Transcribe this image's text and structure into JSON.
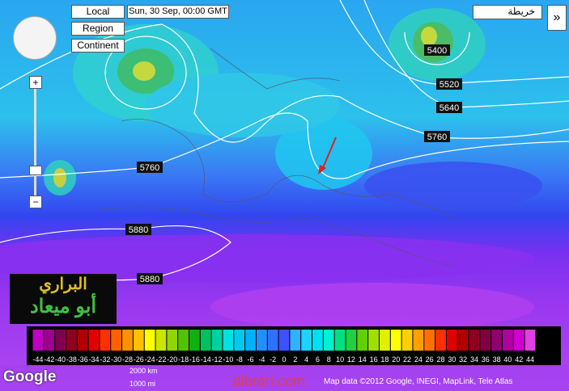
{
  "map_controls": {
    "buttons": [
      "Local",
      "Region",
      "Continent"
    ],
    "timestamp": "Sun, 30 Sep, 00:00 GMT",
    "map_type": "خريطة",
    "toggle": "»",
    "zoom_in": "+",
    "zoom_out": "−"
  },
  "contour_labels": [
    "5400",
    "5520",
    "5640",
    "5760",
    "5760",
    "5880",
    "5880"
  ],
  "logo": {
    "line1": "البراري",
    "line2": "أبو ميعاد"
  },
  "scale": {
    "values": [
      -44,
      -42,
      -40,
      -38,
      -36,
      -34,
      -32,
      -30,
      -28,
      -26,
      -24,
      -22,
      -20,
      -18,
      -16,
      -14,
      -12,
      -10,
      -8,
      -6,
      -4,
      -2,
      0,
      2,
      4,
      6,
      8,
      10,
      12,
      14,
      16,
      18,
      20,
      22,
      24,
      26,
      28,
      30,
      32,
      34,
      36,
      38,
      40,
      42,
      44
    ],
    "colors": [
      "#c000c0",
      "#a00090",
      "#800050",
      "#900020",
      "#b00000",
      "#e00000",
      "#ff3000",
      "#ff6000",
      "#ff9000",
      "#ffc000",
      "#ffff00",
      "#c8e600",
      "#90d400",
      "#50c400",
      "#10b010",
      "#00c060",
      "#00d0a0",
      "#00e0e0",
      "#00c8f0",
      "#00b0ff",
      "#2090ff",
      "#3070ff",
      "#4050ff",
      "#30b0ff",
      "#20d0ff",
      "#00e0f0",
      "#00f0d0",
      "#00e080",
      "#20d040",
      "#60d000",
      "#a0e000",
      "#e0f000",
      "#ffff00",
      "#ffd000",
      "#ffa000",
      "#ff7000",
      "#ff3000",
      "#e00000",
      "#b00000",
      "#900020",
      "#800040",
      "#900070",
      "#b000a0",
      "#d000d0",
      "#e040e0"
    ]
  },
  "footer": {
    "google": "Google",
    "watermark": "albrari.com",
    "attribution": "Map data ©2012 Google, INEGI, MapLink, Tele Atlas",
    "scale_km": "2000 km",
    "scale_mi": "1000 mi"
  }
}
